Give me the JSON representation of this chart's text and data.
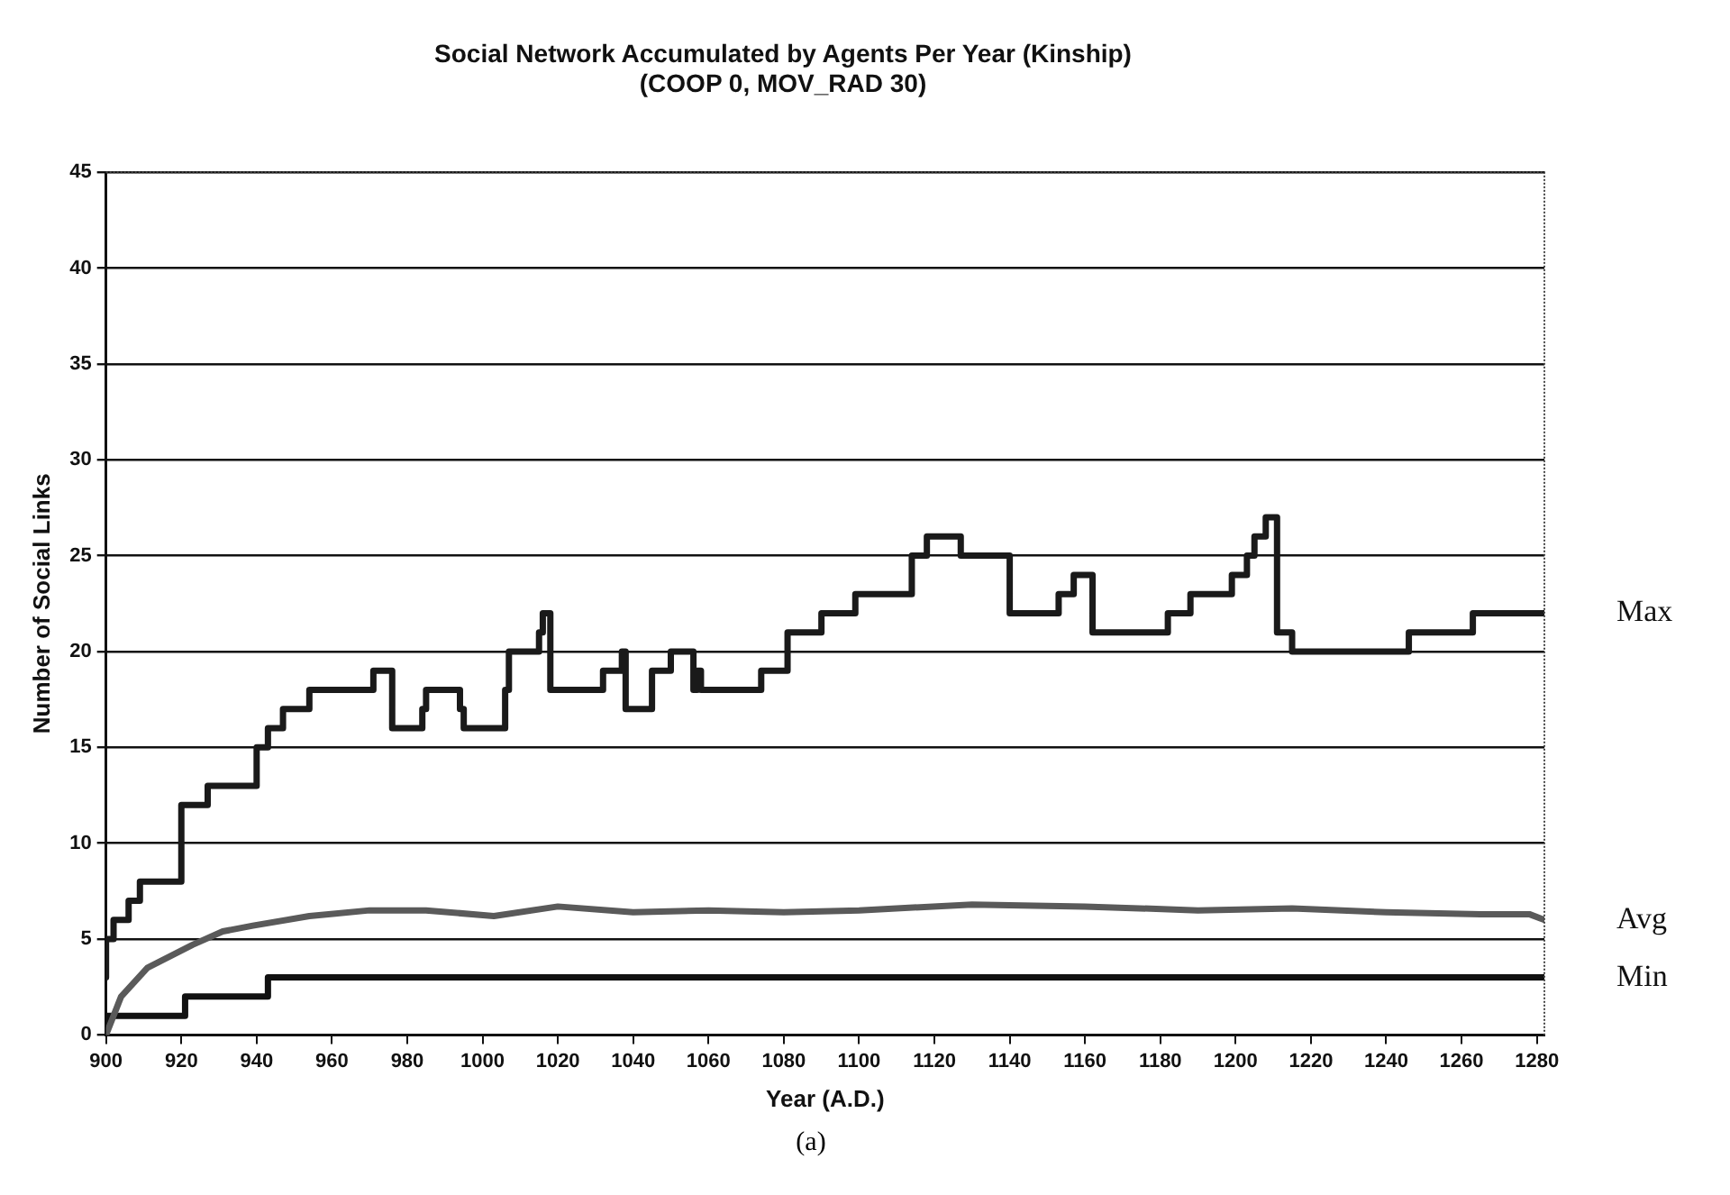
{
  "chart_data": {
    "type": "line",
    "title": "Social Network Accumulated by Agents Per Year (Kinship)",
    "subtitle": "(COOP 0, MOV_RAD 30)",
    "xlabel": "Year (A.D.)",
    "ylabel": "Number of Social Links",
    "annotations": [
      "(a)"
    ],
    "xlim": [
      900,
      1282
    ],
    "xticks": [
      900,
      920,
      940,
      960,
      980,
      1000,
      1020,
      1040,
      1060,
      1080,
      1100,
      1120,
      1140,
      1160,
      1180,
      1200,
      1220,
      1240,
      1260,
      1280
    ],
    "ylim": [
      0,
      45
    ],
    "yticks": [
      0,
      5,
      10,
      15,
      20,
      25,
      30,
      35,
      40,
      45
    ],
    "grid": "y",
    "legend": false,
    "marker": "none",
    "line_style": "solid",
    "series": [
      {
        "name": "Max",
        "type": "step",
        "color": "#1a1a1a",
        "x": [
          900,
          902,
          906,
          909,
          920,
          927,
          940,
          943,
          947,
          954,
          971,
          976,
          984,
          985,
          994,
          995,
          1006,
          1007,
          1015,
          1016,
          1018,
          1032,
          1037,
          1038,
          1045,
          1050,
          1056,
          1057,
          1058,
          1074,
          1081,
          1090,
          1099,
          1114,
          1118,
          1127,
          1140,
          1153,
          1157,
          1162,
          1182,
          1188,
          1199,
          1203,
          1205,
          1208,
          1211,
          1215,
          1246,
          1263,
          1266,
          1282
        ],
        "values": [
          3,
          5,
          6,
          7,
          8,
          12,
          13,
          15,
          16,
          17,
          18,
          19,
          16,
          17,
          18,
          17,
          16,
          18,
          20,
          21,
          22,
          18,
          19,
          20,
          17,
          19,
          20,
          18,
          19,
          18,
          19,
          21,
          22,
          23,
          25,
          26,
          25,
          22,
          23,
          24,
          21,
          22,
          23,
          24,
          25,
          26,
          27,
          21,
          20,
          21,
          22,
          22
        ]
      },
      {
        "name": "Avg",
        "color": "#5a5a5a",
        "x": [
          900,
          904,
          911,
          923,
          931,
          939,
          954,
          970,
          985,
          1003,
          1020,
          1040,
          1060,
          1080,
          1100,
          1130,
          1160,
          1190,
          1215,
          1240,
          1265,
          1278,
          1282
        ],
        "values": [
          0,
          2,
          3.5,
          4.7,
          5.4,
          5.7,
          6.2,
          6.5,
          6.5,
          6.2,
          6.7,
          6.4,
          6.5,
          6.4,
          6.5,
          6.8,
          6.7,
          6.5,
          6.6,
          6.4,
          6.3,
          6.3,
          6
        ]
      },
      {
        "name": "Min",
        "type": "step",
        "color": "#111111",
        "x": [
          900,
          921,
          943,
          949,
          1282
        ],
        "values": [
          0,
          1,
          2,
          3,
          3
        ]
      }
    ]
  }
}
